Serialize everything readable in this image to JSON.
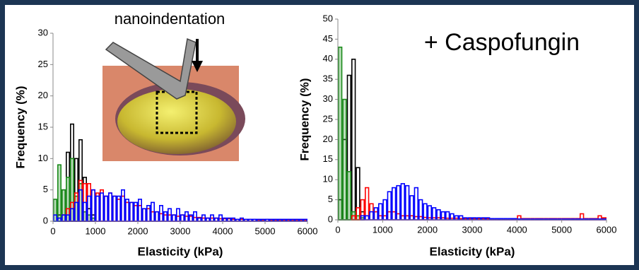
{
  "chart_data": [
    {
      "type": "histogram",
      "annotation": "nanoindentation",
      "xlabel": "Elasticity (kPa)",
      "ylabel": "Frequency (%)",
      "xlim": [
        0,
        6000
      ],
      "xticks": [
        0,
        1000,
        2000,
        3000,
        4000,
        5000,
        6000
      ],
      "ylim": [
        0,
        30
      ],
      "yticks": [
        0,
        5,
        10,
        15,
        20,
        25,
        30
      ],
      "bins": [
        0,
        100,
        200,
        300,
        400,
        500,
        600,
        700,
        800,
        900,
        1000,
        1100,
        1200,
        1300,
        1400,
        1500,
        1600,
        1700,
        1800,
        1900,
        2000,
        2100,
        2200,
        2300,
        2400,
        2500,
        2600,
        2700,
        2800,
        2900,
        3000,
        3100,
        3200,
        3300,
        3400,
        3500,
        3600,
        3700,
        3800,
        3900,
        4000,
        4100,
        4200,
        4300,
        4400,
        4500,
        4600,
        4700,
        4800,
        4900,
        5000,
        5100,
        5200,
        5300,
        5400,
        5500,
        5600,
        5700,
        5800,
        5900,
        6000
      ],
      "series": [
        {
          "color": "#000000",
          "values": [
            0,
            1,
            5,
            11,
            15.5,
            10,
            13,
            7,
            2,
            1,
            0,
            0,
            0,
            0,
            0,
            0,
            0,
            0,
            0,
            0,
            0,
            0,
            0,
            0,
            0,
            0,
            0,
            0,
            0,
            0,
            0,
            0,
            0,
            0,
            0,
            0,
            0,
            0,
            0,
            0,
            0,
            0,
            0,
            0,
            0,
            0,
            0,
            0,
            0,
            0,
            0,
            0,
            0,
            0,
            0,
            0,
            0,
            0,
            0,
            0
          ]
        },
        {
          "color": "#1a8a1a",
          "values": [
            3.5,
            9,
            5,
            7,
            10,
            4,
            6,
            1.5,
            1,
            0.5,
            0,
            0,
            0,
            0,
            0,
            0,
            0,
            0,
            0,
            0,
            0,
            0,
            0,
            0,
            0,
            0,
            0,
            0,
            0,
            0,
            0,
            0,
            0,
            0,
            0,
            0,
            0,
            0,
            0,
            0,
            0,
            0,
            0,
            0,
            0,
            0,
            0,
            0,
            0,
            0,
            0,
            0,
            0,
            0,
            0,
            0,
            0,
            0,
            0,
            0
          ]
        },
        {
          "color": "#ff0000",
          "values": [
            0,
            0,
            1,
            2,
            3,
            4.5,
            6.5,
            6,
            6,
            5,
            4.5,
            5,
            4,
            4.5,
            4,
            3.5,
            4,
            3,
            3,
            2.5,
            2.5,
            2,
            2,
            1.5,
            1.5,
            1.2,
            1,
            1,
            1,
            0.8,
            1,
            0.8,
            0.8,
            0.6,
            0.6,
            0.5,
            0.5,
            0.5,
            0.5,
            0.4,
            0.4,
            0.4,
            0.3,
            0.3,
            0.3,
            0.3,
            0.3,
            0.3,
            0.2,
            0.2,
            0.3,
            0.2,
            0.2,
            0.2,
            0.2,
            0.2,
            0.2,
            0.2,
            0.2,
            0.2
          ]
        },
        {
          "color": "#0000ff",
          "values": [
            1,
            0.5,
            1,
            1,
            2,
            3,
            5,
            3,
            4,
            5,
            4,
            4.5,
            4,
            4.5,
            4,
            4,
            5,
            3.5,
            3,
            3,
            3.5,
            2,
            2.5,
            3,
            1.5,
            2.5,
            1.5,
            2,
            1,
            2,
            1,
            1.5,
            1,
            1.5,
            0.5,
            1,
            0.5,
            1,
            0.5,
            1,
            0.5,
            0.5,
            0.5,
            0.3,
            0.5,
            0.3,
            0.3,
            0.3,
            0.3,
            0.3,
            0.3,
            0.3,
            0.3,
            0.3,
            0.3,
            0.3,
            0.3,
            0.3,
            0.3,
            0.3
          ]
        }
      ]
    },
    {
      "type": "histogram",
      "annotation": "+ Caspofungin",
      "xlabel": "Elasticity (kPa)",
      "ylabel": "Frequency (%)",
      "xlim": [
        0,
        6000
      ],
      "xticks": [
        0,
        1000,
        2000,
        3000,
        4000,
        5000,
        6000
      ],
      "ylim": [
        0,
        50
      ],
      "yticks": [
        0,
        5,
        10,
        15,
        20,
        25,
        30,
        35,
        40,
        45,
        50
      ],
      "bins": [
        0,
        100,
        200,
        300,
        400,
        500,
        600,
        700,
        800,
        900,
        1000,
        1100,
        1200,
        1300,
        1400,
        1500,
        1600,
        1700,
        1800,
        1900,
        2000,
        2100,
        2200,
        2300,
        2400,
        2500,
        2600,
        2700,
        2800,
        2900,
        3000,
        3100,
        3200,
        3300,
        3400,
        3500,
        3600,
        3700,
        3800,
        3900,
        4000,
        4100,
        4200,
        4300,
        4400,
        4500,
        4600,
        4700,
        4800,
        4900,
        5000,
        5100,
        5200,
        5300,
        5400,
        5500,
        5600,
        5700,
        5800,
        5900,
        6000
      ],
      "series": [
        {
          "color": "#000000",
          "values": [
            5,
            20,
            36,
            40,
            13,
            2,
            0,
            0,
            0,
            0,
            0,
            0,
            0,
            0,
            0,
            0,
            0,
            0,
            0,
            0,
            0,
            0,
            0,
            0,
            0,
            0,
            0,
            0,
            0,
            0,
            0,
            0,
            0,
            0,
            0,
            0,
            0,
            0,
            0,
            0,
            0,
            0,
            0,
            0,
            0,
            0,
            0,
            0,
            0,
            0,
            0,
            0,
            0,
            0,
            0,
            0,
            0,
            0,
            0,
            0
          ]
        },
        {
          "color": "#1a8a1a",
          "values": [
            43,
            30,
            12,
            2,
            1,
            0.5,
            0,
            0,
            0,
            0,
            0,
            0,
            0,
            0,
            0,
            0,
            0,
            0,
            0,
            0,
            0,
            0,
            0,
            0,
            0,
            0,
            0,
            0,
            0,
            0,
            0,
            0,
            0,
            0,
            0,
            0,
            0,
            0,
            0,
            0,
            0,
            0,
            0,
            0,
            0,
            0,
            0,
            0,
            0,
            0,
            0,
            0,
            0,
            0,
            0,
            0,
            0,
            0,
            0,
            0
          ]
        },
        {
          "color": "#ff0000",
          "values": [
            0,
            0,
            0,
            1,
            3,
            5,
            8,
            4,
            2,
            1,
            1,
            2,
            2,
            1.5,
            1,
            1,
            1,
            0.8,
            0.8,
            0.6,
            0.5,
            0.5,
            0.5,
            0.5,
            0.4,
            0.4,
            0.4,
            0.3,
            0.3,
            0.3,
            0.3,
            0.3,
            0.3,
            0.3,
            0.3,
            0.3,
            0.3,
            0.3,
            0.3,
            0.3,
            1,
            0.3,
            0.3,
            0.3,
            0.3,
            0.3,
            0.3,
            0.3,
            0.3,
            0.3,
            0.3,
            0.3,
            0.3,
            0.3,
            1.5,
            0.3,
            0.3,
            0.3,
            1,
            0.5
          ]
        },
        {
          "color": "#0000ff",
          "values": [
            0,
            0,
            0,
            0,
            0,
            1,
            1,
            2,
            3,
            4,
            5,
            7,
            8,
            8.5,
            9,
            8.5,
            6,
            8,
            5,
            4,
            3.5,
            3,
            2.5,
            2,
            2,
            1.5,
            1,
            1,
            0.5,
            0.5,
            0.5,
            0.5,
            0.5,
            0.5,
            0.3,
            0.3,
            0.3,
            0.3,
            0.3,
            0.3,
            0.2,
            0.2,
            0.2,
            0.2,
            0.2,
            0.2,
            0.2,
            0.2,
            0.2,
            0.2,
            0.2,
            0.2,
            0.2,
            0.2,
            0.2,
            0.2,
            0.2,
            0.2,
            0.2,
            0.2
          ]
        }
      ]
    }
  ]
}
